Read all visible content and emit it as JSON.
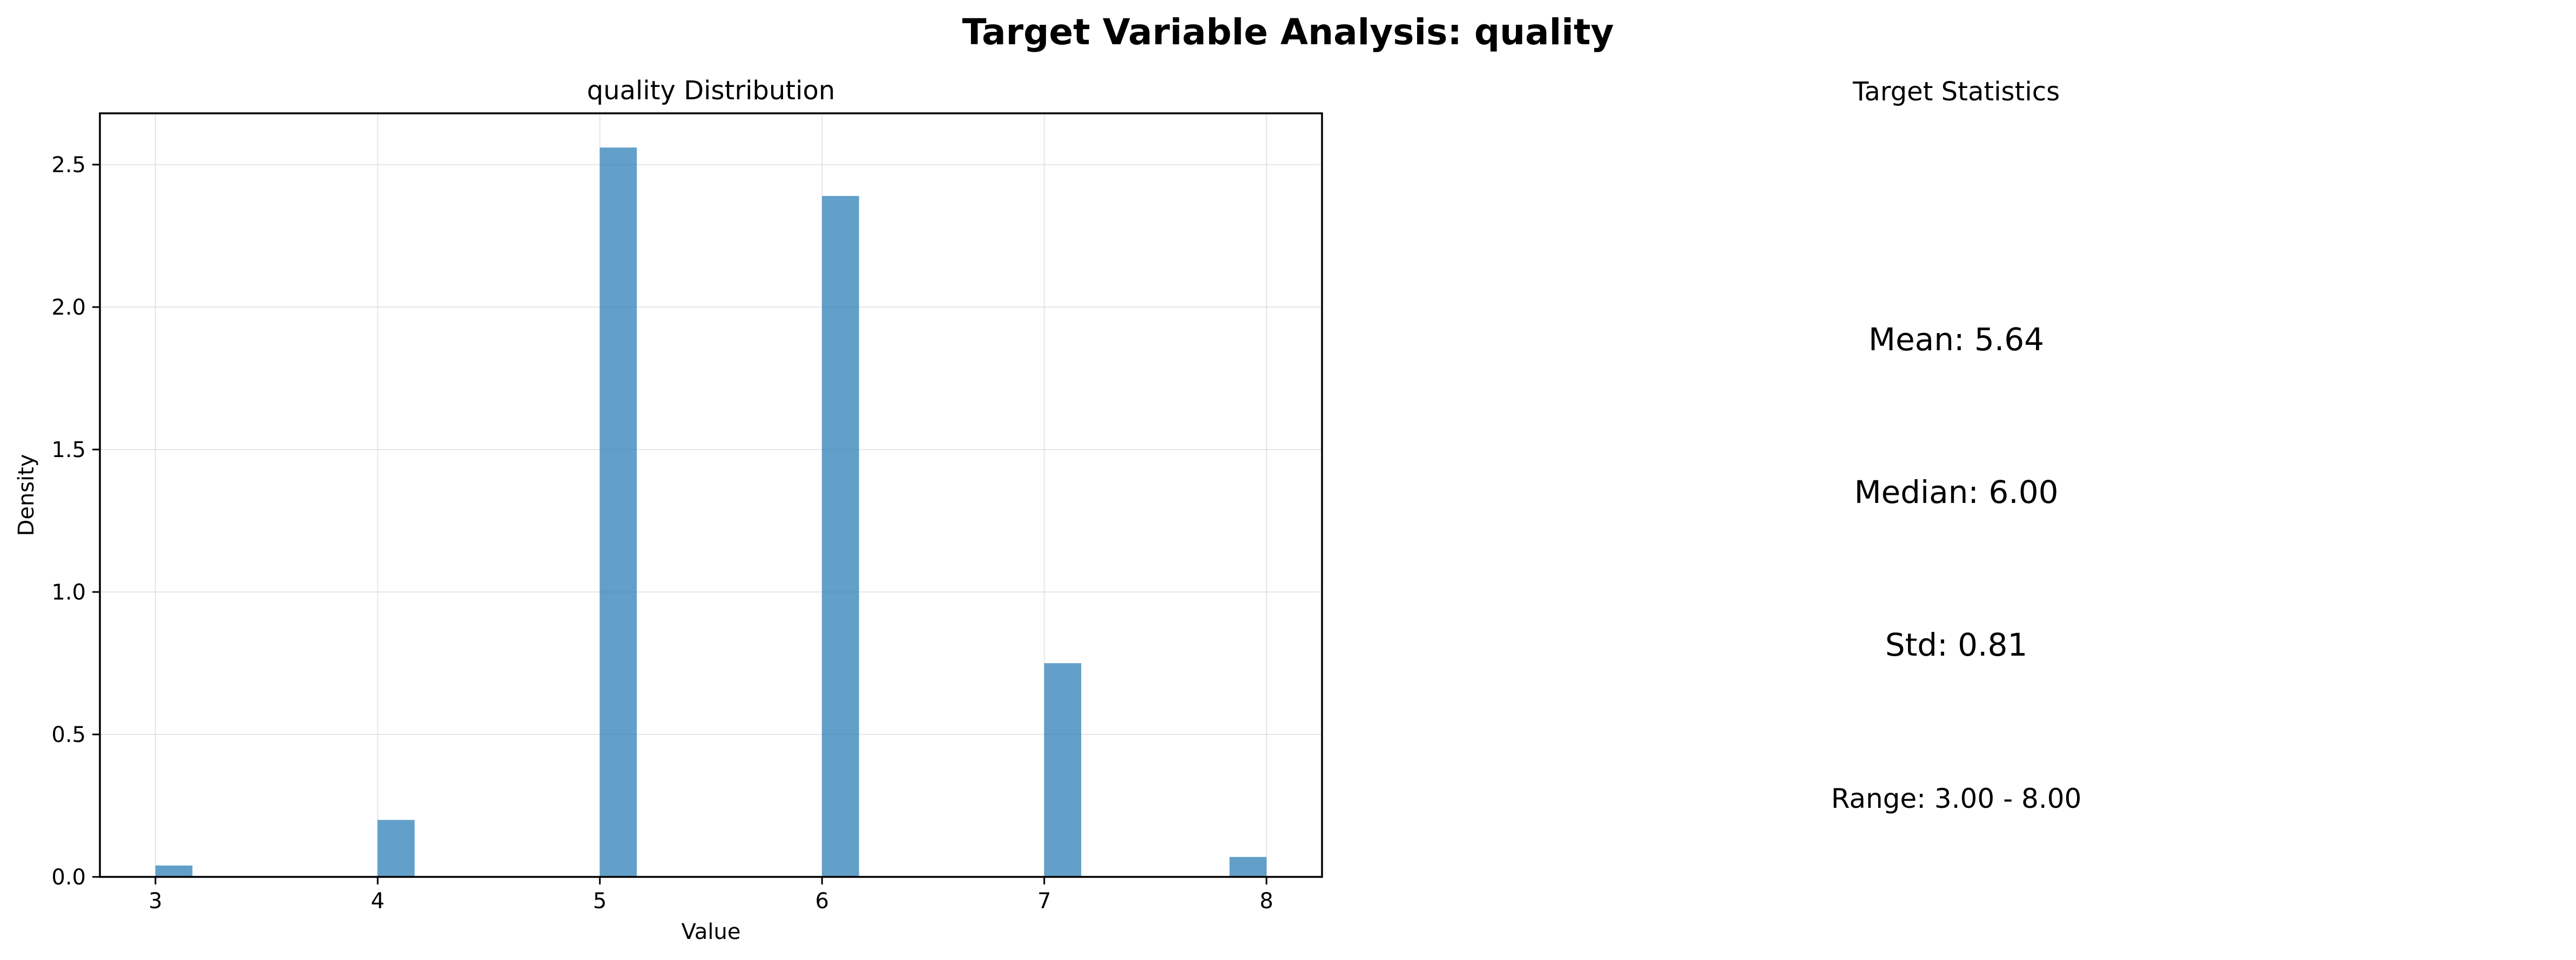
{
  "figure": {
    "suptitle": "Target Variable Analysis: quality"
  },
  "chart_data": {
    "type": "bar",
    "title": "quality Distribution",
    "xlabel": "Value",
    "ylabel": "Density",
    "bin_count": 30,
    "bin_centers": [
      3.083,
      4.083,
      5.083,
      6.083,
      7.083,
      7.917
    ],
    "values": [
      0.04,
      0.2,
      2.56,
      2.39,
      0.75,
      0.07
    ],
    "xlim": [
      2.75,
      8.25
    ],
    "ylim": [
      0,
      2.68
    ],
    "x_ticks": [
      3,
      4,
      5,
      6,
      7,
      8
    ],
    "y_ticks": [
      0.0,
      0.5,
      1.0,
      1.5,
      2.0,
      2.5
    ],
    "y_tick_labels": [
      "0.0",
      "0.5",
      "1.0",
      "1.5",
      "2.0",
      "2.5"
    ],
    "bar_color": "#1f77b4",
    "grid": true
  },
  "stats_panel": {
    "title": "Target Statistics",
    "mean": "Mean: 5.64",
    "median": "Median: 6.00",
    "std": "Std: 0.81",
    "range": "Range: 3.00 - 8.00"
  }
}
